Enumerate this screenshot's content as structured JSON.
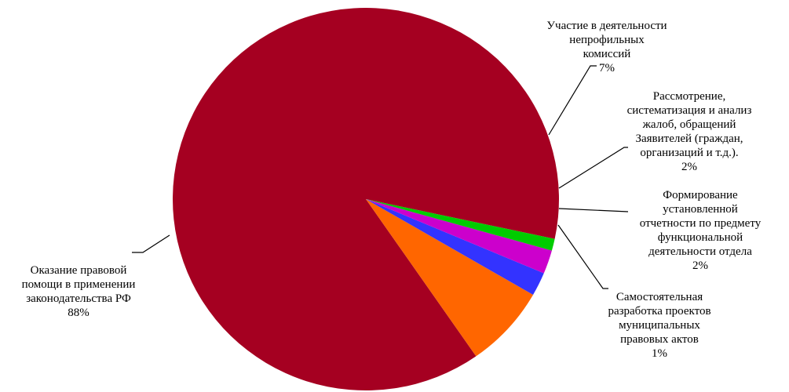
{
  "chart_data": {
    "type": "pie",
    "slices": [
      {
        "label": "Оказание правовой\nпомощи в применении\nзаконодательства РФ",
        "pct_text": "88%",
        "value": 88,
        "color": "#A50021"
      },
      {
        "label": "Участие в деятельности\nнепрофильных\nкомиссий",
        "pct_text": "7%",
        "value": 7,
        "color": "#FF6600"
      },
      {
        "label": "Рассмотрение,\nсистематизация и анализ\nжалоб, обращений\nЗаявителей (граждан,\nорганизаций и т.д.).",
        "pct_text": "2%",
        "value": 2,
        "color": "#3333FF"
      },
      {
        "label": "Формирование\nустановленной\nотчетности по предмету\nфункциональной\nдеятельности отдела",
        "pct_text": "2%",
        "value": 2,
        "color": "#CC00CC"
      },
      {
        "label": "Самостоятельная\nразработка проектов\nмуниципальных\nправовых актов",
        "pct_text": "1%",
        "value": 1,
        "color": "#00CC00"
      }
    ]
  }
}
